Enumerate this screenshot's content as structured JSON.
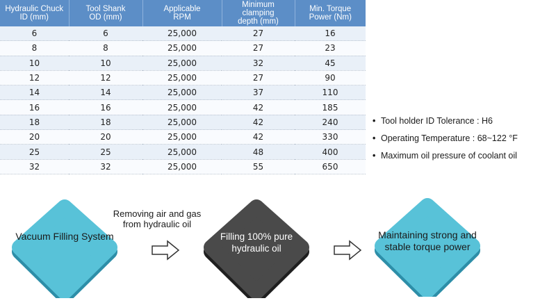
{
  "table": {
    "headers": [
      [
        "Hydraulic Chuck",
        "ID (mm)"
      ],
      [
        "Tool Shank",
        "OD (mm)"
      ],
      [
        "Applicable",
        "RPM"
      ],
      [
        "Minimum",
        "clamping",
        "depth (mm)"
      ],
      [
        "Min. Torque",
        "Power (Nm)"
      ]
    ],
    "rows": [
      [
        "6",
        "6",
        "25,000",
        "27",
        "16"
      ],
      [
        "8",
        "8",
        "25,000",
        "27",
        "23"
      ],
      [
        "10",
        "10",
        "25,000",
        "32",
        "45"
      ],
      [
        "12",
        "12",
        "25,000",
        "27",
        "90"
      ],
      [
        "14",
        "14",
        "25,000",
        "37",
        "110"
      ],
      [
        "16",
        "16",
        "25,000",
        "42",
        "185"
      ],
      [
        "18",
        "18",
        "25,000",
        "42",
        "240"
      ],
      [
        "20",
        "20",
        "25,000",
        "42",
        "330"
      ],
      [
        "25",
        "25",
        "25,000",
        "48",
        "400"
      ],
      [
        "32",
        "32",
        "25,000",
        "55",
        "650"
      ]
    ]
  },
  "notes": [
    "Tool holder ID Tolerance : H6",
    "Operating Temperature : 68~122 °F",
    "Maximum oil pressure of coolant oil"
  ],
  "bullet": "•",
  "process": {
    "step1": {
      "label": "Vacuum Filling System",
      "color": "#58c2d8"
    },
    "caption": "Removing air and gas from hydraulic oil",
    "step2": {
      "label": "Filling 100% pure hydraulic oil",
      "color": "#4a4a4a"
    },
    "step3": {
      "label": "Maintaining strong and stable torque power",
      "color": "#58c2d8"
    },
    "arrow_icon": "outline-right-arrow"
  }
}
